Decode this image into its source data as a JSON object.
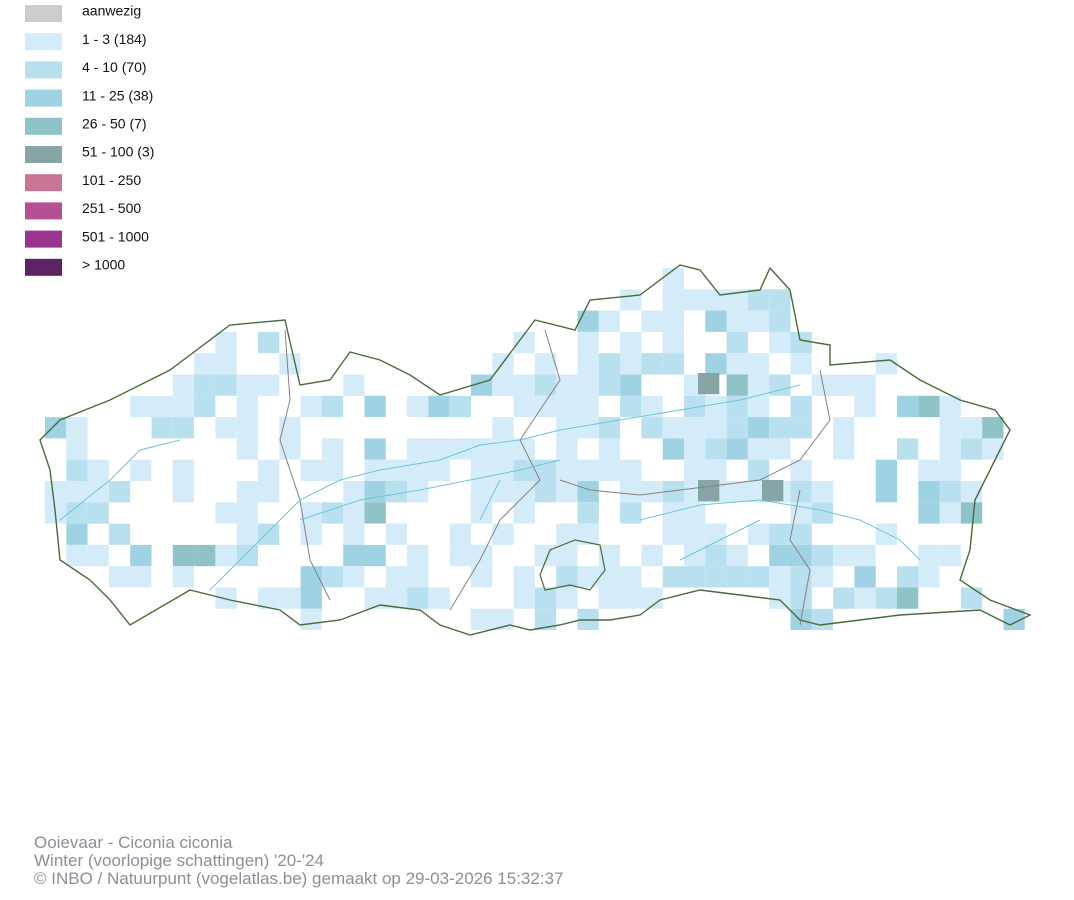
{
  "legend": {
    "items": [
      {
        "label": "aanwezig",
        "color": "#cccccc"
      },
      {
        "label": "1 - 3 (184)",
        "color": "#d4ecf9"
      },
      {
        "label": "4 - 10 (70)",
        "color": "#b9e0ef"
      },
      {
        "label": "11 - 25 (38)",
        "color": "#9fd3e3"
      },
      {
        "label": "26 - 50 (7)",
        "color": "#8fc3c8"
      },
      {
        "label": "51 - 100 (3)",
        "color": "#87a5a6"
      },
      {
        "label": "101 - 250",
        "color": "#c87596"
      },
      {
        "label": "251 - 500",
        "color": "#b55095"
      },
      {
        "label": "501 - 1000",
        "color": "#99348f"
      },
      {
        "label": "> 1000",
        "color": "#5e2363"
      }
    ]
  },
  "footer": {
    "lines": [
      "Ooievaar - Ciconia ciconia",
      "Winter (voorlopige schattingen) '20-'24",
      "© INBO / Natuurpunt (vogelatlas.be) gemaakt op 29-03-2026 15:32:37"
    ]
  }
}
